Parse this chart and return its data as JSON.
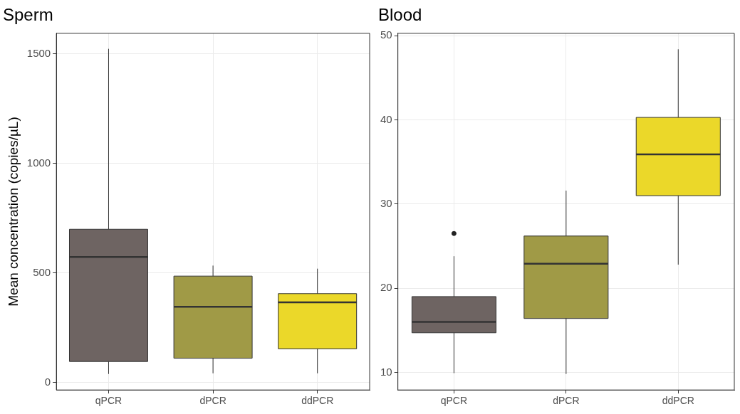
{
  "chart_data": [
    {
      "type": "box",
      "title": "Sperm",
      "ylabel": "Mean concentration (copies/µL)",
      "categories": [
        "qPCR",
        "dPCR",
        "ddPCR"
      ],
      "colors": [
        "#6e6462",
        "#a09a46",
        "#ebd829"
      ],
      "ylim": [
        -35,
        1594
      ],
      "yticks": [
        0,
        500,
        1000,
        1500
      ],
      "grid": true,
      "legend": false,
      "boxes": [
        {
          "low": 38,
          "q1": 95,
          "median": 572,
          "q3": 699,
          "high": 1523
        },
        {
          "low": 41,
          "q1": 110,
          "median": 345,
          "q3": 485,
          "high": 533
        },
        {
          "low": 41,
          "q1": 153,
          "median": 365,
          "q3": 405,
          "high": 519
        }
      ]
    },
    {
      "type": "box",
      "title": "Blood",
      "categories": [
        "qPCR",
        "dPCR",
        "ddPCR"
      ],
      "colors": [
        "#6e6462",
        "#a09a46",
        "#ebd829"
      ],
      "ylim": [
        7.9,
        50.3
      ],
      "yticks": [
        10,
        20,
        30,
        40,
        50
      ],
      "grid": true,
      "legend": false,
      "boxes": [
        {
          "low": 9.9,
          "q1": 14.7,
          "median": 16.0,
          "q3": 19.0,
          "high": 23.8,
          "outliers": [
            26.5
          ]
        },
        {
          "low": 9.8,
          "q1": 16.4,
          "median": 22.9,
          "q3": 26.2,
          "high": 31.6
        },
        {
          "low": 22.8,
          "q1": 31.0,
          "median": 35.9,
          "q3": 40.3,
          "high": 48.4
        }
      ]
    }
  ]
}
